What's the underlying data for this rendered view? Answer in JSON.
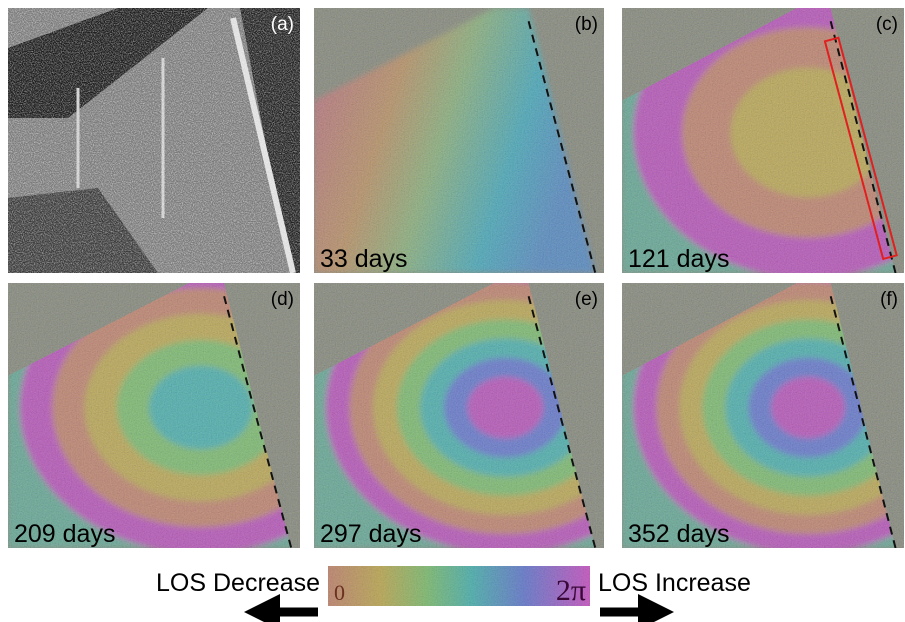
{
  "panels": [
    {
      "label": "(a)"
    },
    {
      "label": "(b)",
      "days": "33 days"
    },
    {
      "label": "(c)",
      "days": "121 days"
    },
    {
      "label": "(d)",
      "days": "209 days"
    },
    {
      "label": "(e)",
      "days": "297 days"
    },
    {
      "label": "(f)",
      "days": "352 days"
    }
  ],
  "colorbar": {
    "left_label": "LOS Decrease",
    "min_label": "0",
    "max_label": "2π",
    "right_label": "LOS Increase"
  }
}
